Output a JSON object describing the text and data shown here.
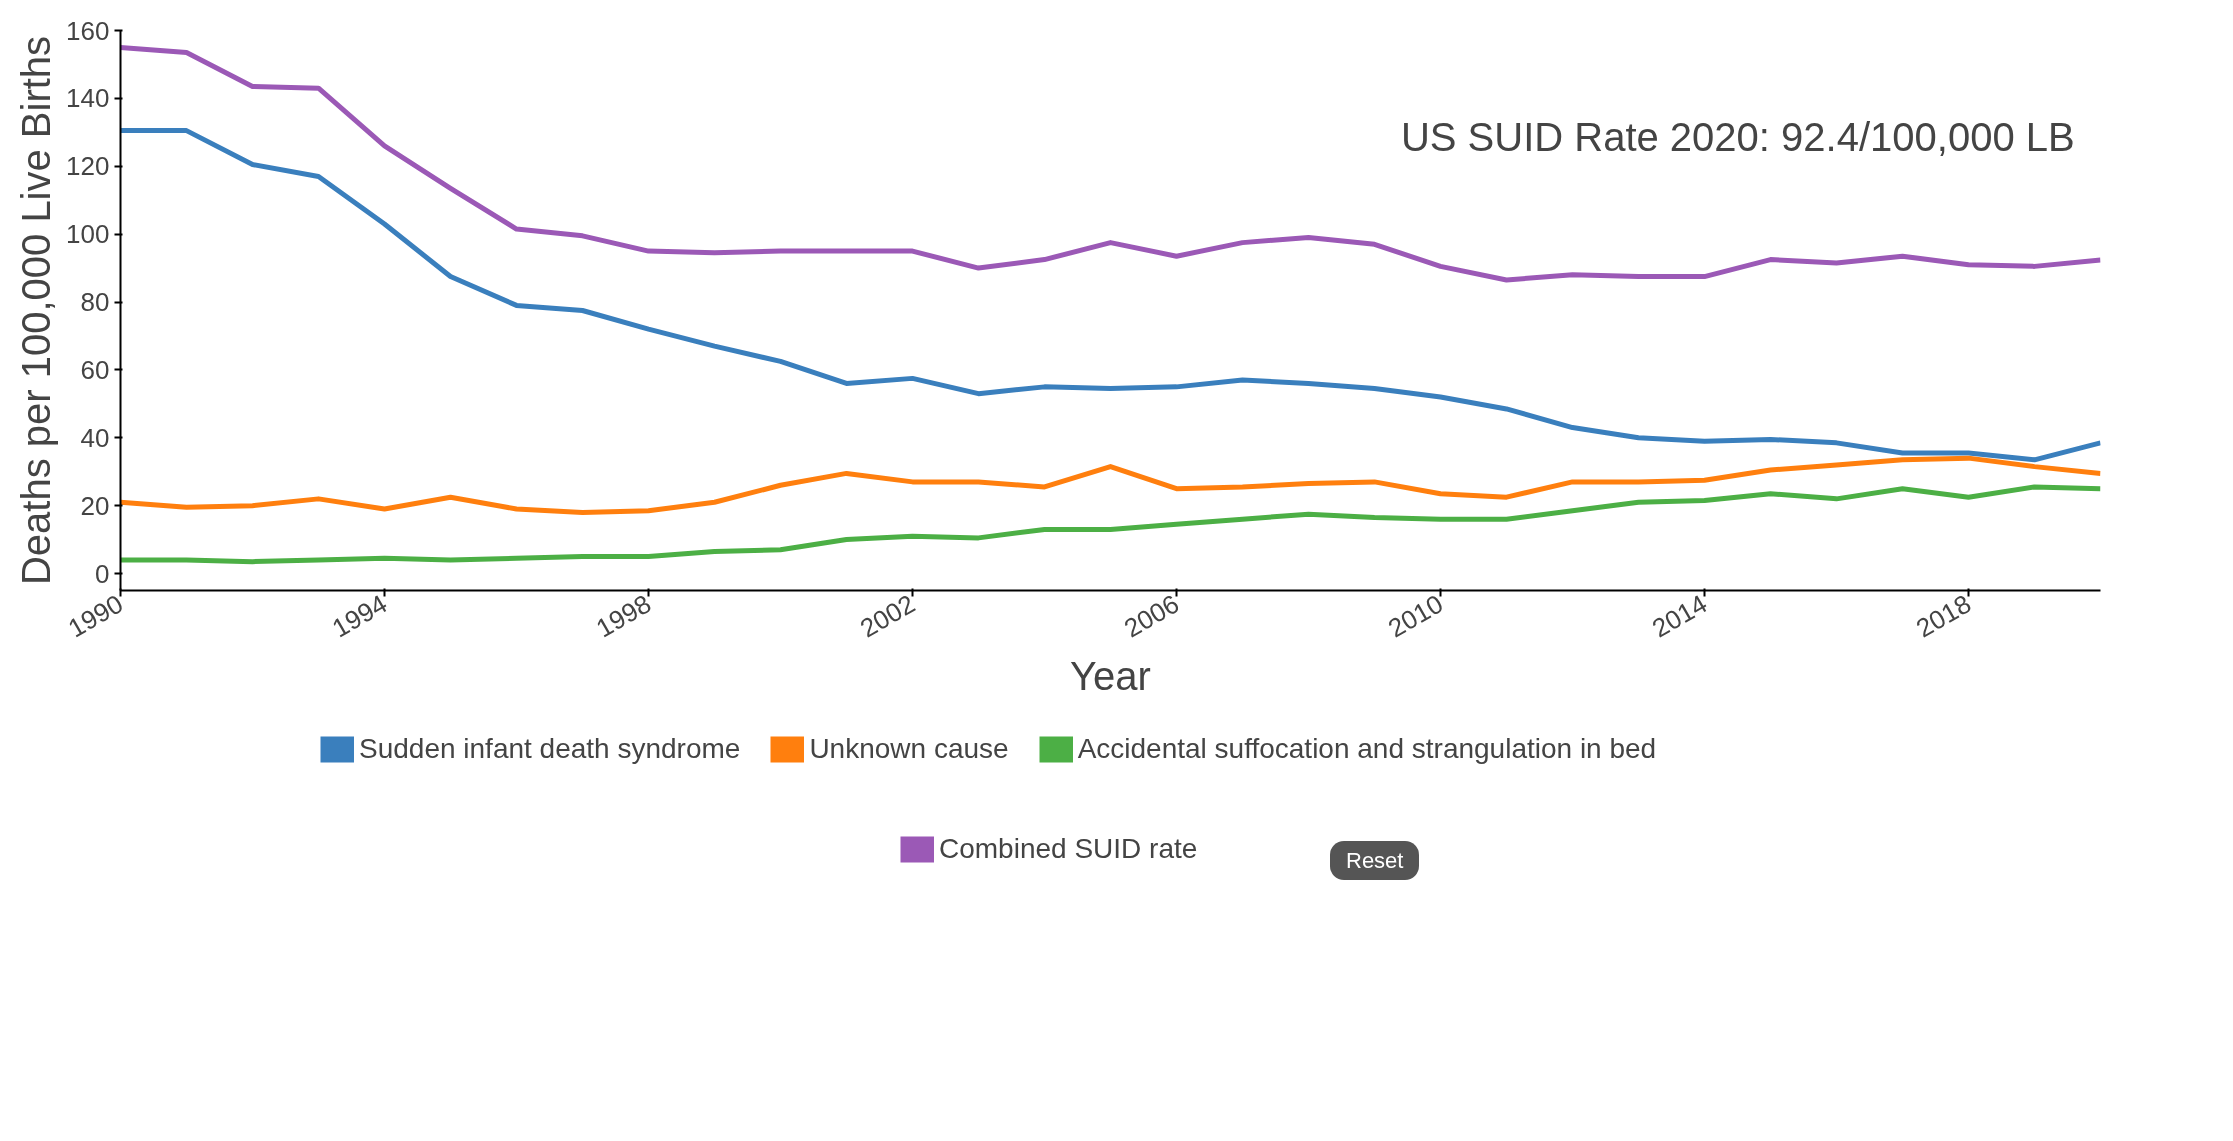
{
  "chart_data": {
    "type": "line",
    "xlabel": "Year",
    "ylabel": "Deaths per 100,000 Live Births",
    "x": [
      1990,
      1991,
      1992,
      1993,
      1994,
      1995,
      1996,
      1997,
      1998,
      1999,
      2000,
      2001,
      2002,
      2003,
      2004,
      2005,
      2006,
      2007,
      2008,
      2009,
      2010,
      2011,
      2012,
      2013,
      2014,
      2015,
      2016,
      2017,
      2018,
      2019,
      2020
    ],
    "series": [
      {
        "name": "Sudden infant death syndrome",
        "color": "#3a7fbd",
        "values": [
          130.5,
          130.5,
          120.5,
          117,
          103,
          87.5,
          79,
          77.5,
          72,
          67,
          62.5,
          56,
          57.5,
          53,
          55,
          54.5,
          55,
          57,
          56,
          54.5,
          52,
          48.5,
          43,
          40,
          39,
          39.5,
          38.5,
          35.5,
          35.5,
          33.5,
          38.5
        ]
      },
      {
        "name": "Unknown cause",
        "color": "#ff7f0e",
        "values": [
          21,
          19.5,
          20,
          22,
          19,
          22.5,
          19,
          18,
          18.5,
          21,
          26,
          29.5,
          27,
          27,
          25.5,
          31.5,
          25,
          25.5,
          26.5,
          27,
          23.5,
          22.5,
          27,
          27,
          27.5,
          30.5,
          32,
          33.5,
          34,
          31.5,
          29.5
        ]
      },
      {
        "name": "Accidental suffocation and strangulation in bed",
        "color": "#4caf45",
        "values": [
          4,
          4,
          3.5,
          4,
          4.5,
          4,
          4.5,
          5,
          5,
          6.5,
          7,
          10,
          11,
          10.5,
          13,
          13,
          14.5,
          16,
          17.5,
          16.5,
          16,
          16,
          18.5,
          21,
          21.5,
          23.5,
          22,
          25,
          22.5,
          25.5,
          25
        ]
      },
      {
        "name": "Combined SUID rate",
        "color": "#9b59b6",
        "values": [
          155,
          153.5,
          143.5,
          143,
          126,
          113.5,
          101.5,
          99.5,
          95,
          94.5,
          95,
          95,
          95,
          90,
          92.5,
          97.5,
          93.5,
          97.5,
          99,
          97,
          90.5,
          86.5,
          88,
          87.5,
          87.5,
          92.5,
          91.5,
          93.5,
          91,
          90.5,
          92.4
        ]
      }
    ],
    "xlim": [
      1990,
      2020
    ],
    "xticks": [
      1990,
      1994,
      1998,
      2002,
      2006,
      2010,
      2014,
      2018
    ],
    "ylim": [
      -5,
      160
    ],
    "yticks": [
      0,
      20,
      40,
      60,
      80,
      100,
      120,
      140,
      160
    ],
    "annotations": [
      "US SUID Rate 2020: 92.4/100,000 LB",
      "Reset"
    ],
    "grid": false,
    "legend": "bottom",
    "marker": "none",
    "line_style": "solid"
  }
}
